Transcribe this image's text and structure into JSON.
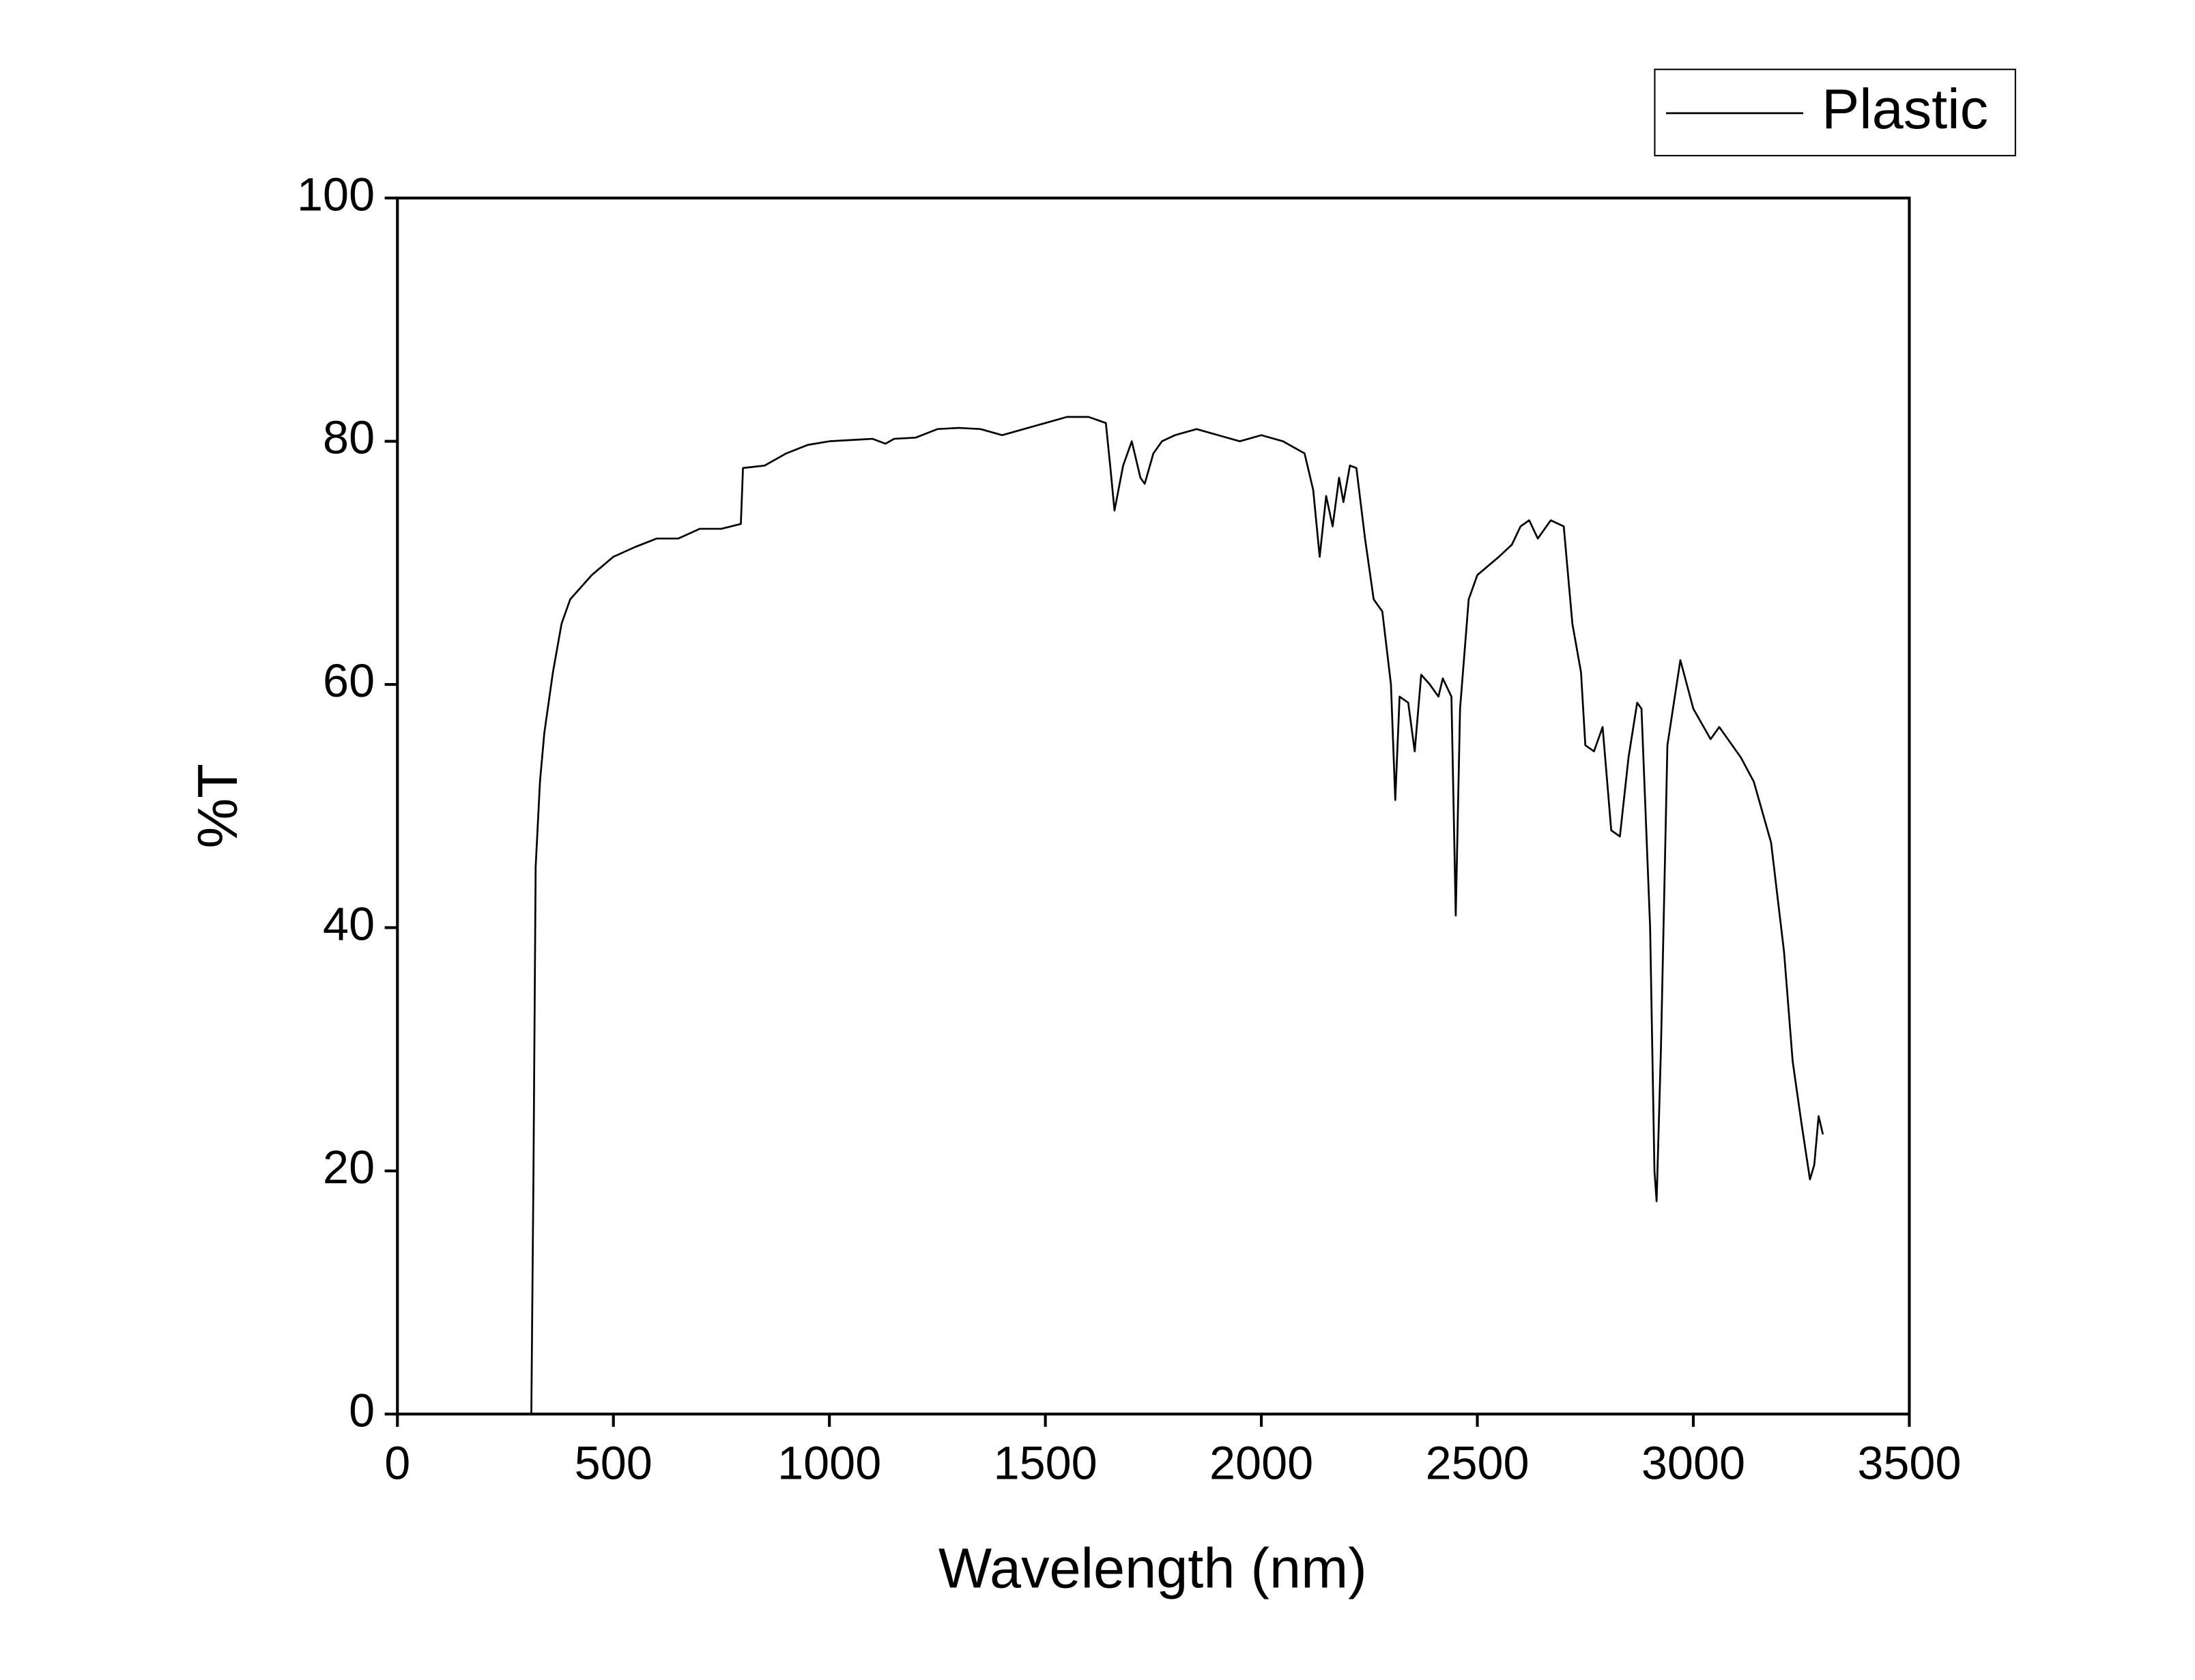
{
  "chart_data": {
    "type": "line",
    "xlabel": "Wavelength (nm)",
    "ylabel": "%T",
    "xlim": [
      0,
      3500
    ],
    "ylim": [
      0,
      100
    ],
    "xticks": [
      0,
      500,
      1000,
      1500,
      2000,
      2500,
      3000,
      3500
    ],
    "yticks": [
      0,
      20,
      40,
      60,
      80,
      100
    ],
    "legend": "top-right",
    "series": [
      {
        "name": "Plastic",
        "color": "#000000",
        "x": [
          310,
          315,
          320,
          330,
          340,
          360,
          380,
          400,
          450,
          500,
          550,
          600,
          650,
          700,
          750,
          795,
          800,
          850,
          900,
          950,
          1000,
          1100,
          1130,
          1150,
          1200,
          1250,
          1300,
          1350,
          1400,
          1450,
          1500,
          1550,
          1600,
          1640,
          1650,
          1660,
          1680,
          1700,
          1720,
          1730,
          1750,
          1770,
          1800,
          1850,
          1900,
          1950,
          2000,
          2050,
          2100,
          2120,
          2135,
          2150,
          2165,
          2180,
          2190,
          2205,
          2220,
          2240,
          2260,
          2280,
          2300,
          2310,
          2320,
          2340,
          2355,
          2370,
          2390,
          2410,
          2420,
          2440,
          2450,
          2460,
          2480,
          2500,
          2550,
          2580,
          2600,
          2620,
          2640,
          2670,
          2700,
          2720,
          2740,
          2750,
          2770,
          2790,
          2810,
          2830,
          2850,
          2870,
          2880,
          2900,
          2910,
          2915,
          2925,
          2940,
          2970,
          3000,
          3040,
          3060,
          3080,
          3110,
          3140,
          3180,
          3210,
          3230,
          3250,
          3270,
          3280,
          3290,
          3300
        ],
        "values": [
          0,
          20,
          45,
          52,
          56,
          61,
          65,
          67,
          69,
          70.5,
          71.3,
          72,
          72,
          72.8,
          72.8,
          73.2,
          77.8,
          78,
          79,
          79.7,
          80,
          80.2,
          79.8,
          80.2,
          80.3,
          81,
          81.1,
          81,
          80.5,
          81,
          81.5,
          82,
          82,
          81.5,
          78,
          74.3,
          78,
          80,
          77,
          76.5,
          79,
          80,
          80.5,
          81,
          80.5,
          80,
          80.5,
          80,
          79,
          76,
          70.5,
          75.5,
          73,
          77,
          75,
          78,
          77.8,
          72,
          67,
          66,
          60,
          50.5,
          59,
          58.5,
          54.5,
          60.8,
          60,
          59,
          60.5,
          59,
          41,
          58,
          67,
          69,
          70.5,
          71.5,
          73,
          73.5,
          72,
          73.5,
          73,
          65,
          61,
          55,
          54.5,
          56.5,
          48,
          47.5,
          54,
          58.5,
          58,
          40,
          20,
          17.5,
          30,
          55,
          62,
          58,
          55.5,
          56.5,
          55.5,
          54,
          52,
          47,
          38,
          29,
          24,
          19.3,
          20.5,
          24.5,
          23
        ]
      }
    ]
  }
}
